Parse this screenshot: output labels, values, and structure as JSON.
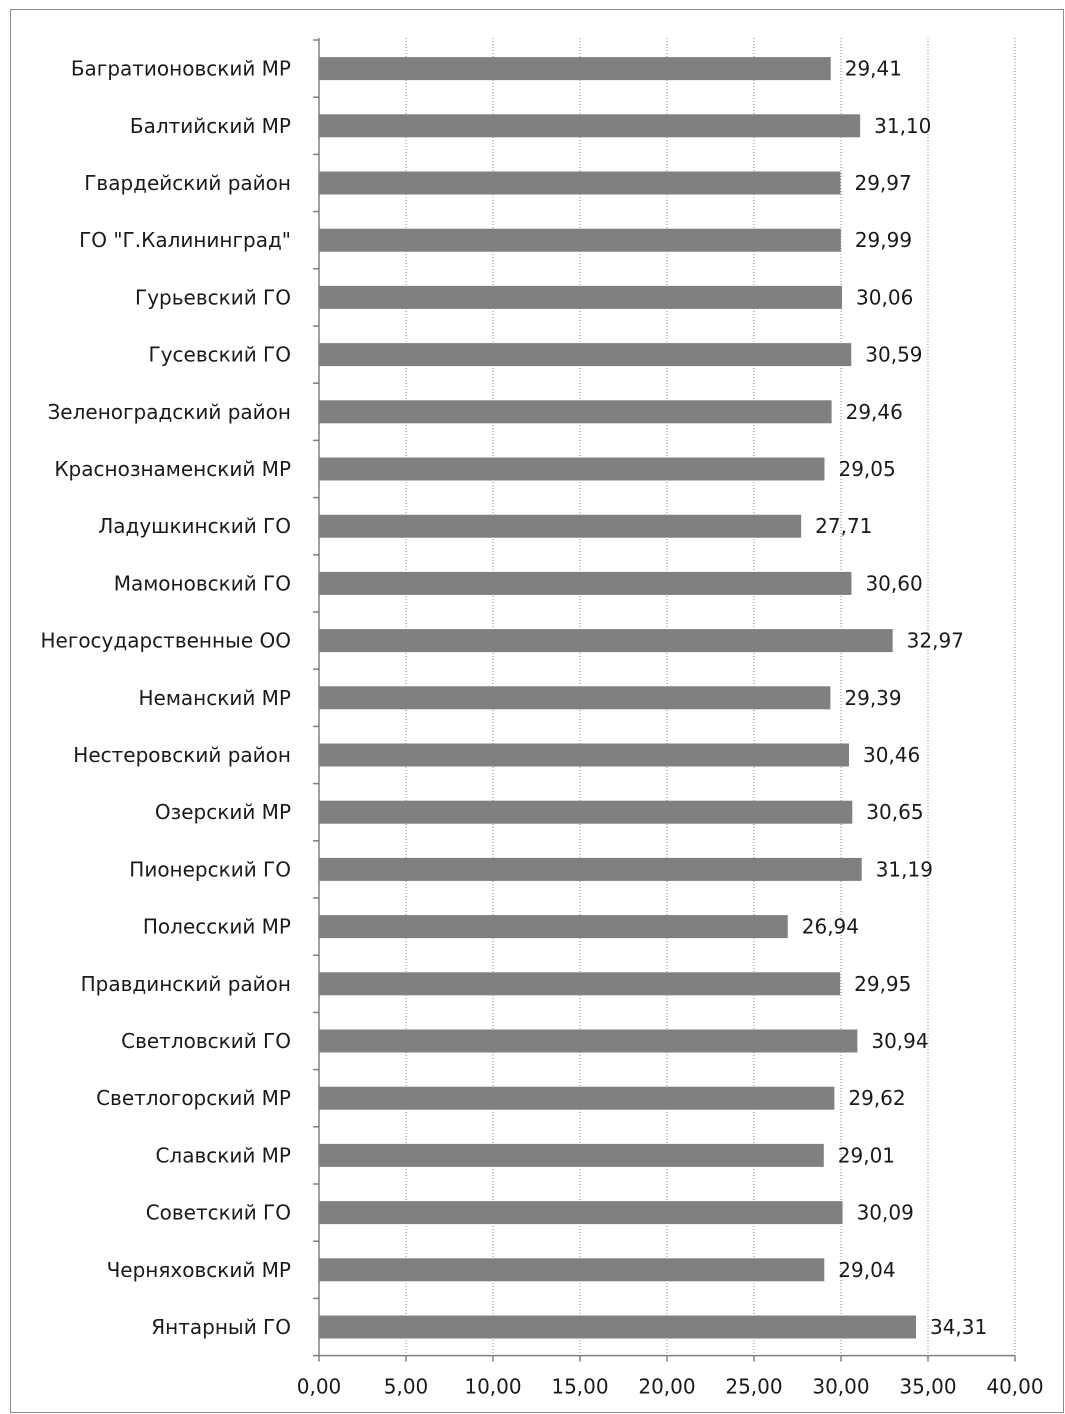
{
  "chart_data": {
    "type": "bar",
    "orientation": "horizontal",
    "title": "",
    "xlabel": "",
    "ylabel": "",
    "categories": [
      "Багратионовский МР",
      "Балтийский МР",
      "Гвардейский район",
      "ГО \"Г.Калининград\"",
      "Гурьевский ГО",
      "Гусевский ГО",
      "Зеленоградский район",
      "Краснознаменский МР",
      "Ладушкинский ГО",
      "Мамоновский ГО",
      "Негосударственные ОО",
      "Неманский МР",
      "Нестеровский район",
      "Озерский МР",
      "Пионерский ГО",
      "Полесский МР",
      "Правдинский район",
      "Светловский ГО",
      "Светлогорский МР",
      "Славский МР",
      "Советский ГО",
      "Черняховский МР",
      "Янтарный ГО"
    ],
    "values": [
      29.41,
      31.1,
      29.97,
      29.99,
      30.06,
      30.59,
      29.46,
      29.05,
      27.71,
      30.6,
      32.97,
      29.39,
      30.46,
      30.65,
      31.19,
      26.94,
      29.95,
      30.94,
      29.62,
      29.01,
      30.09,
      29.04,
      34.31
    ],
    "value_labels": [
      "29,41",
      "31,10",
      "29,97",
      "29,99",
      "30,06",
      "30,59",
      "29,46",
      "29,05",
      "27,71",
      "30,60",
      "32,97",
      "29,39",
      "30,46",
      "30,65",
      "31,19",
      "26,94",
      "29,95",
      "30,94",
      "29,62",
      "29,01",
      "30,09",
      "29,04",
      "34,31"
    ],
    "xlim": [
      0,
      40
    ],
    "ticks": [
      0,
      5,
      10,
      15,
      20,
      25,
      30,
      35,
      40
    ],
    "tick_labels": [
      "0,00",
      "5,00",
      "10,00",
      "15,00",
      "20,00",
      "25,00",
      "30,00",
      "35,00",
      "40,00"
    ],
    "grid": "vertical dotted",
    "bar_color": "#808080",
    "grid_color": "#8c8c8c",
    "axis_color": "#808080",
    "text_color": "#1a1a1a"
  }
}
